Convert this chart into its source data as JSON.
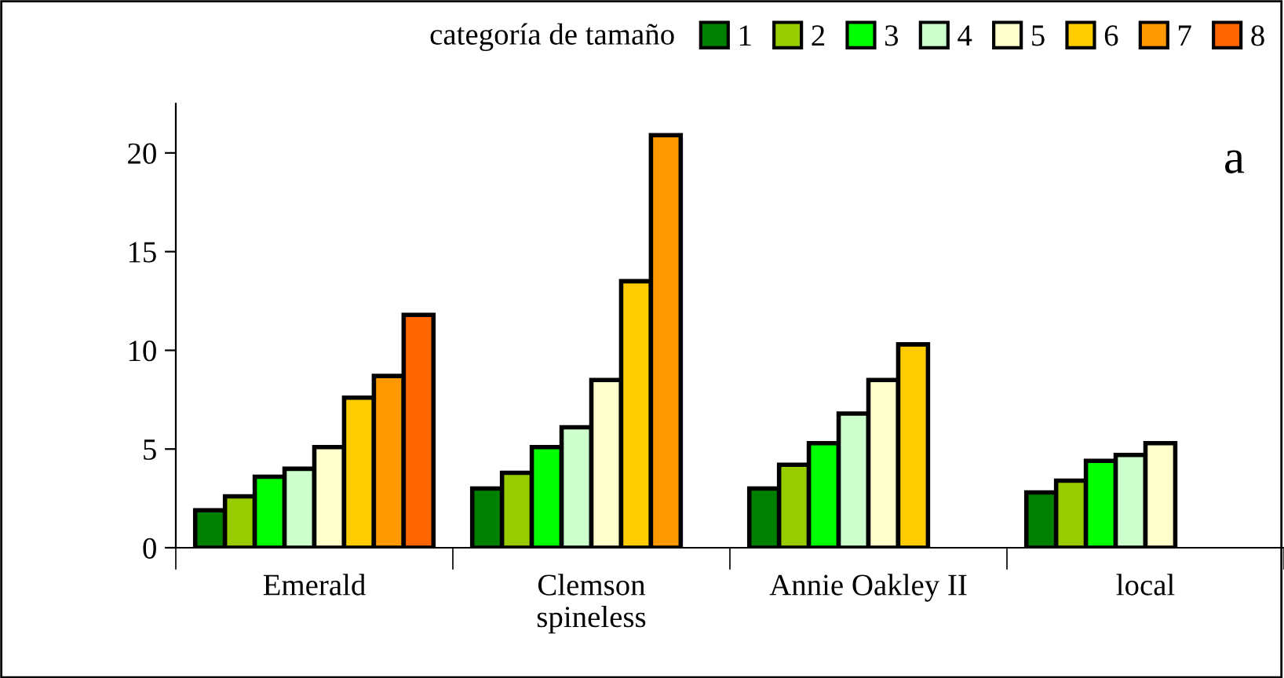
{
  "chart_data": {
    "type": "bar",
    "categories": [
      "Emerald",
      "Clemson\nspineless",
      "Annie Oakley II",
      "local"
    ],
    "legend_title": "categoría de tamaño",
    "series": [
      {
        "name": "1",
        "color": "#008000",
        "values": [
          1.9,
          3.0,
          3.0,
          2.8
        ]
      },
      {
        "name": "2",
        "color": "#99cc00",
        "values": [
          2.6,
          3.8,
          4.2,
          3.4
        ]
      },
      {
        "name": "3",
        "color": "#00ff00",
        "values": [
          3.6,
          5.1,
          5.3,
          4.4
        ]
      },
      {
        "name": "4",
        "color": "#ccffcc",
        "values": [
          4.0,
          6.1,
          6.8,
          4.7
        ]
      },
      {
        "name": "5",
        "color": "#ffffcc",
        "values": [
          5.1,
          8.5,
          8.5,
          5.3
        ]
      },
      {
        "name": "6",
        "color": "#ffcc00",
        "values": [
          7.6,
          13.5,
          10.3,
          null
        ]
      },
      {
        "name": "7",
        "color": "#ff9900",
        "values": [
          8.7,
          20.9,
          null,
          null
        ]
      },
      {
        "name": "8",
        "color": "#ff6600",
        "values": [
          11.8,
          null,
          null,
          null
        ]
      }
    ],
    "ylim": [
      0,
      22.5
    ],
    "yticks": [
      0,
      5,
      10,
      15,
      20
    ],
    "annotations": [
      "a"
    ],
    "legend": "top right",
    "grid": false
  }
}
